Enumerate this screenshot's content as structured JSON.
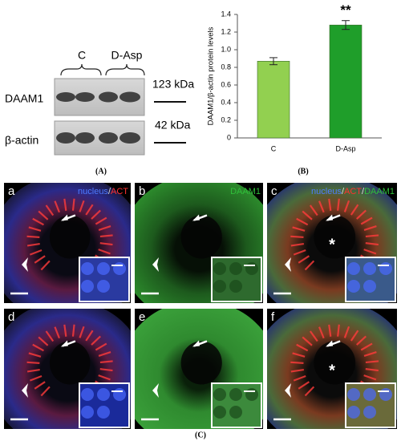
{
  "blot": {
    "group_labels": [
      "C",
      "D-Asp"
    ],
    "bands": [
      {
        "name": "DAAM1",
        "size": "123 kDa"
      },
      {
        "name": "β-actin",
        "size": "42 kDa"
      }
    ]
  },
  "chart_data": {
    "type": "bar",
    "ylabel": "DAAM1/β-actin protein levels",
    "categories": [
      "C",
      "D-Asp"
    ],
    "values": [
      0.87,
      1.28
    ],
    "errors": [
      0.04,
      0.05
    ],
    "colors": [
      "#92d050",
      "#1f9e2a"
    ],
    "annotation": "**",
    "ylim": [
      0,
      1.4
    ],
    "yticks": [
      0,
      0.2,
      0.4,
      0.6,
      0.8,
      {
        "value": 1,
        "label": "1.0"
      },
      1.2,
      1.4
    ]
  },
  "panel_labels": [
    "(A)",
    "(B)",
    "(C)"
  ],
  "micrographs": [
    {
      "letter": "a",
      "legend": [
        {
          "text": "nucleus",
          "color": "#4f7bff"
        },
        {
          "text": "/",
          "color": "#dddddd"
        },
        {
          "text": "ACT",
          "color": "#ff3030"
        }
      ]
    },
    {
      "letter": "b",
      "legend": [
        {
          "text": "DAAM1",
          "color": "#2fbf3a"
        }
      ]
    },
    {
      "letter": "c",
      "legend": [
        {
          "text": "nucleus",
          "color": "#4f7bff"
        },
        {
          "text": "/",
          "color": "#dddddd"
        },
        {
          "text": "ACT",
          "color": "#ff3030"
        },
        {
          "text": "/",
          "color": "#dddddd"
        },
        {
          "text": "DAAM1",
          "color": "#2fbf3a"
        }
      ]
    },
    {
      "letter": "d"
    },
    {
      "letter": "e"
    },
    {
      "letter": "f"
    }
  ]
}
